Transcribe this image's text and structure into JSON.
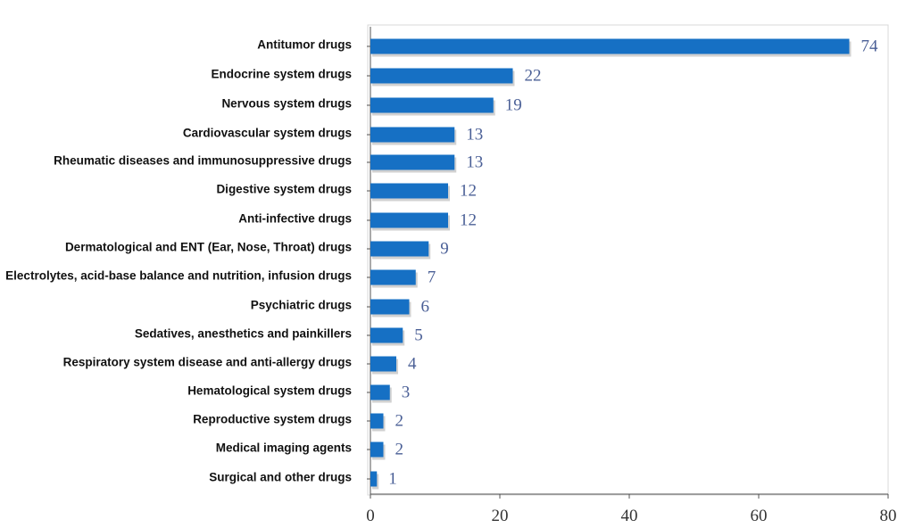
{
  "chart_data": {
    "type": "bar",
    "orientation": "horizontal",
    "title": "",
    "xlabel": "",
    "ylabel": "",
    "xlim": [
      0,
      80
    ],
    "x_ticks": [
      0,
      20,
      40,
      60,
      80
    ],
    "grid": false,
    "bar_color": "#1670c4",
    "value_label_color": "#4a5f96",
    "categories": [
      "Antitumor drugs",
      "Endocrine system drugs",
      "Nervous system drugs",
      "Cardiovascular system drugs",
      "Rheumatic diseases and immunosuppressive drugs",
      "Digestive system drugs",
      "Anti-infective drugs",
      "Dermatological and ENT (Ear, Nose, Throat) drugs",
      "Electrolytes, acid-base balance and nutrition, infusion drugs",
      "Psychiatric drugs",
      "Sedatives, anesthetics and painkillers",
      "Respiratory system disease and anti-allergy drugs",
      "Hematological system drugs",
      "Reproductive system drugs",
      "Medical imaging agents",
      "Surgical and other drugs"
    ],
    "values": [
      74,
      22,
      19,
      13,
      13,
      12,
      12,
      9,
      7,
      6,
      5,
      4,
      3,
      2,
      2,
      1
    ]
  }
}
